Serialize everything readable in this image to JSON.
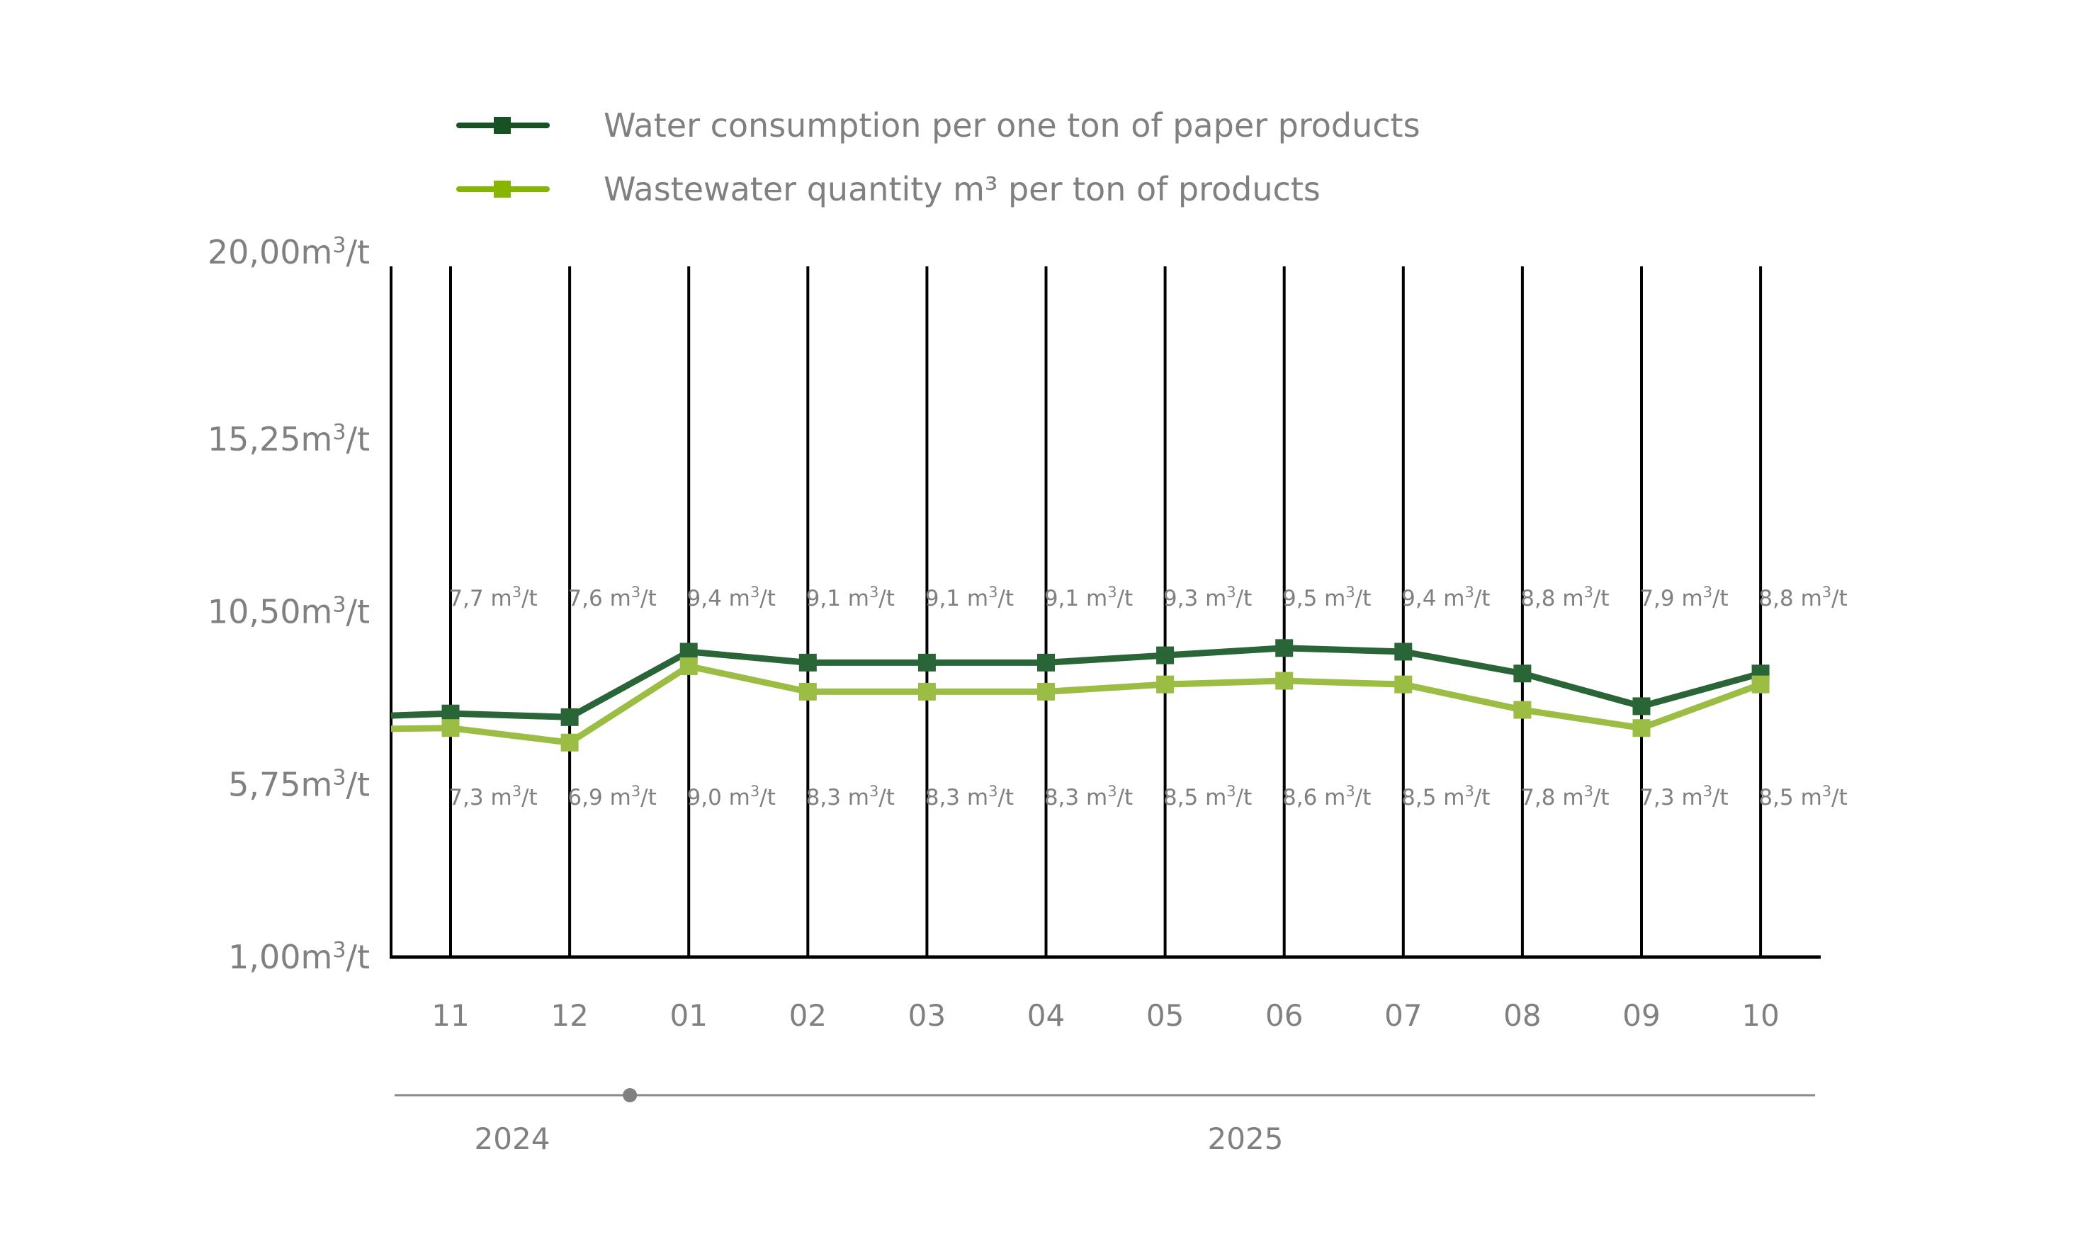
{
  "chart_data": {
    "type": "line",
    "title": "",
    "xlabel": "",
    "ylabel": "",
    "unit": "m³/t",
    "ylim": [
      1.0,
      20.0
    ],
    "yticks": [
      "1,00m³/t",
      "5,75m³/t",
      "10,50m³/t",
      "15,25m³/t",
      "20,00m³/t"
    ],
    "ytick_values": [
      1.0,
      5.75,
      10.5,
      15.25,
      20.0
    ],
    "categories": [
      "11",
      "12",
      "01",
      "02",
      "03",
      "04",
      "05",
      "06",
      "07",
      "08",
      "09",
      "10"
    ],
    "grid": "vertical",
    "legend_position": "top",
    "series": [
      {
        "name": "Water consumption per one ton of paper products",
        "color": "#2a6538",
        "legend_color": "#165224",
        "marker": "square",
        "values": [
          7.7,
          7.6,
          9.4,
          9.1,
          9.1,
          9.1,
          9.3,
          9.5,
          9.4,
          8.8,
          7.9,
          8.8
        ],
        "labels": [
          "7,7 m³/t",
          "7,6 m³/t",
          "9,4 m³/t",
          "9,1 m³/t",
          "9,1 m³/t",
          "9,1 m³/t",
          "9,3 m³/t",
          "9,5 m³/t",
          "9,4 m³/t",
          "8,8 m³/t",
          "7,9 m³/t",
          "8,8 m³/t"
        ],
        "label_position": "above"
      },
      {
        "name": "Wastewater quantity m³ per ton of products",
        "color": "#9bbd43",
        "legend_color": "#86b600",
        "marker": "square",
        "values": [
          7.3,
          6.9,
          9.0,
          8.3,
          8.3,
          8.3,
          8.5,
          8.6,
          8.5,
          7.8,
          7.3,
          8.5
        ],
        "labels": [
          "7,3 m³/t",
          "6,9 m³/t",
          "9,0 m³/t",
          "8,3 m³/t",
          "8,3 m³/t",
          "8,3 m³/t",
          "8,5 m³/t",
          "8,6 m³/t",
          "8,5 m³/t",
          "7,8 m³/t",
          "7,3 m³/t",
          "8,5 m³/t"
        ],
        "label_position": "below"
      }
    ],
    "timeline": {
      "years": [
        "2024",
        "2025"
      ],
      "divider_after_category": "12"
    }
  }
}
